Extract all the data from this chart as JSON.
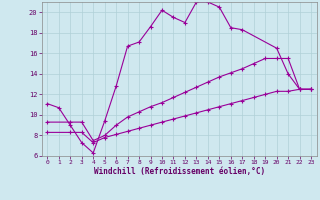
{
  "bg_color": "#cfe8ef",
  "line_color": "#990099",
  "grid_color": "#b0d0d8",
  "xlabel": "Windchill (Refroidissement éolien,°C)",
  "xlabel_color": "#660066",
  "tick_color": "#660066",
  "xlim": [
    -0.5,
    23.5
  ],
  "ylim": [
    6,
    21
  ],
  "yticks": [
    6,
    8,
    10,
    12,
    14,
    16,
    18,
    20
  ],
  "xticks": [
    0,
    1,
    2,
    3,
    4,
    5,
    6,
    7,
    8,
    9,
    10,
    11,
    12,
    13,
    14,
    15,
    16,
    17,
    18,
    19,
    20,
    21,
    22,
    23
  ],
  "line1_x": [
    0,
    1,
    2,
    3,
    4,
    5,
    6,
    7,
    8,
    9,
    10,
    11,
    12,
    13,
    14,
    15,
    16,
    17,
    20,
    21,
    22,
    23
  ],
  "line1_y": [
    11.1,
    10.7,
    9.0,
    7.3,
    6.3,
    9.4,
    12.8,
    16.7,
    17.1,
    18.6,
    20.2,
    19.5,
    19.0,
    21.0,
    21.0,
    20.5,
    18.5,
    18.3,
    16.5,
    14.0,
    12.5,
    12.5
  ],
  "line2_x": [
    0,
    2,
    3,
    4,
    5,
    6,
    7,
    8,
    9,
    10,
    11,
    12,
    13,
    14,
    15,
    16,
    17,
    18,
    19,
    20,
    21,
    22,
    23
  ],
  "line2_y": [
    9.3,
    9.3,
    9.3,
    7.5,
    8.0,
    9.0,
    9.8,
    10.3,
    10.8,
    11.2,
    11.7,
    12.2,
    12.7,
    13.2,
    13.7,
    14.1,
    14.5,
    15.0,
    15.5,
    15.5,
    15.5,
    12.5,
    12.5
  ],
  "line3_x": [
    0,
    2,
    3,
    4,
    5,
    6,
    7,
    8,
    9,
    10,
    11,
    12,
    13,
    14,
    15,
    16,
    17,
    18,
    19,
    20,
    21,
    22,
    23
  ],
  "line3_y": [
    8.3,
    8.3,
    8.3,
    7.3,
    7.8,
    8.1,
    8.4,
    8.7,
    9.0,
    9.3,
    9.6,
    9.9,
    10.2,
    10.5,
    10.8,
    11.1,
    11.4,
    11.7,
    12.0,
    12.3,
    12.3,
    12.5,
    12.5
  ]
}
